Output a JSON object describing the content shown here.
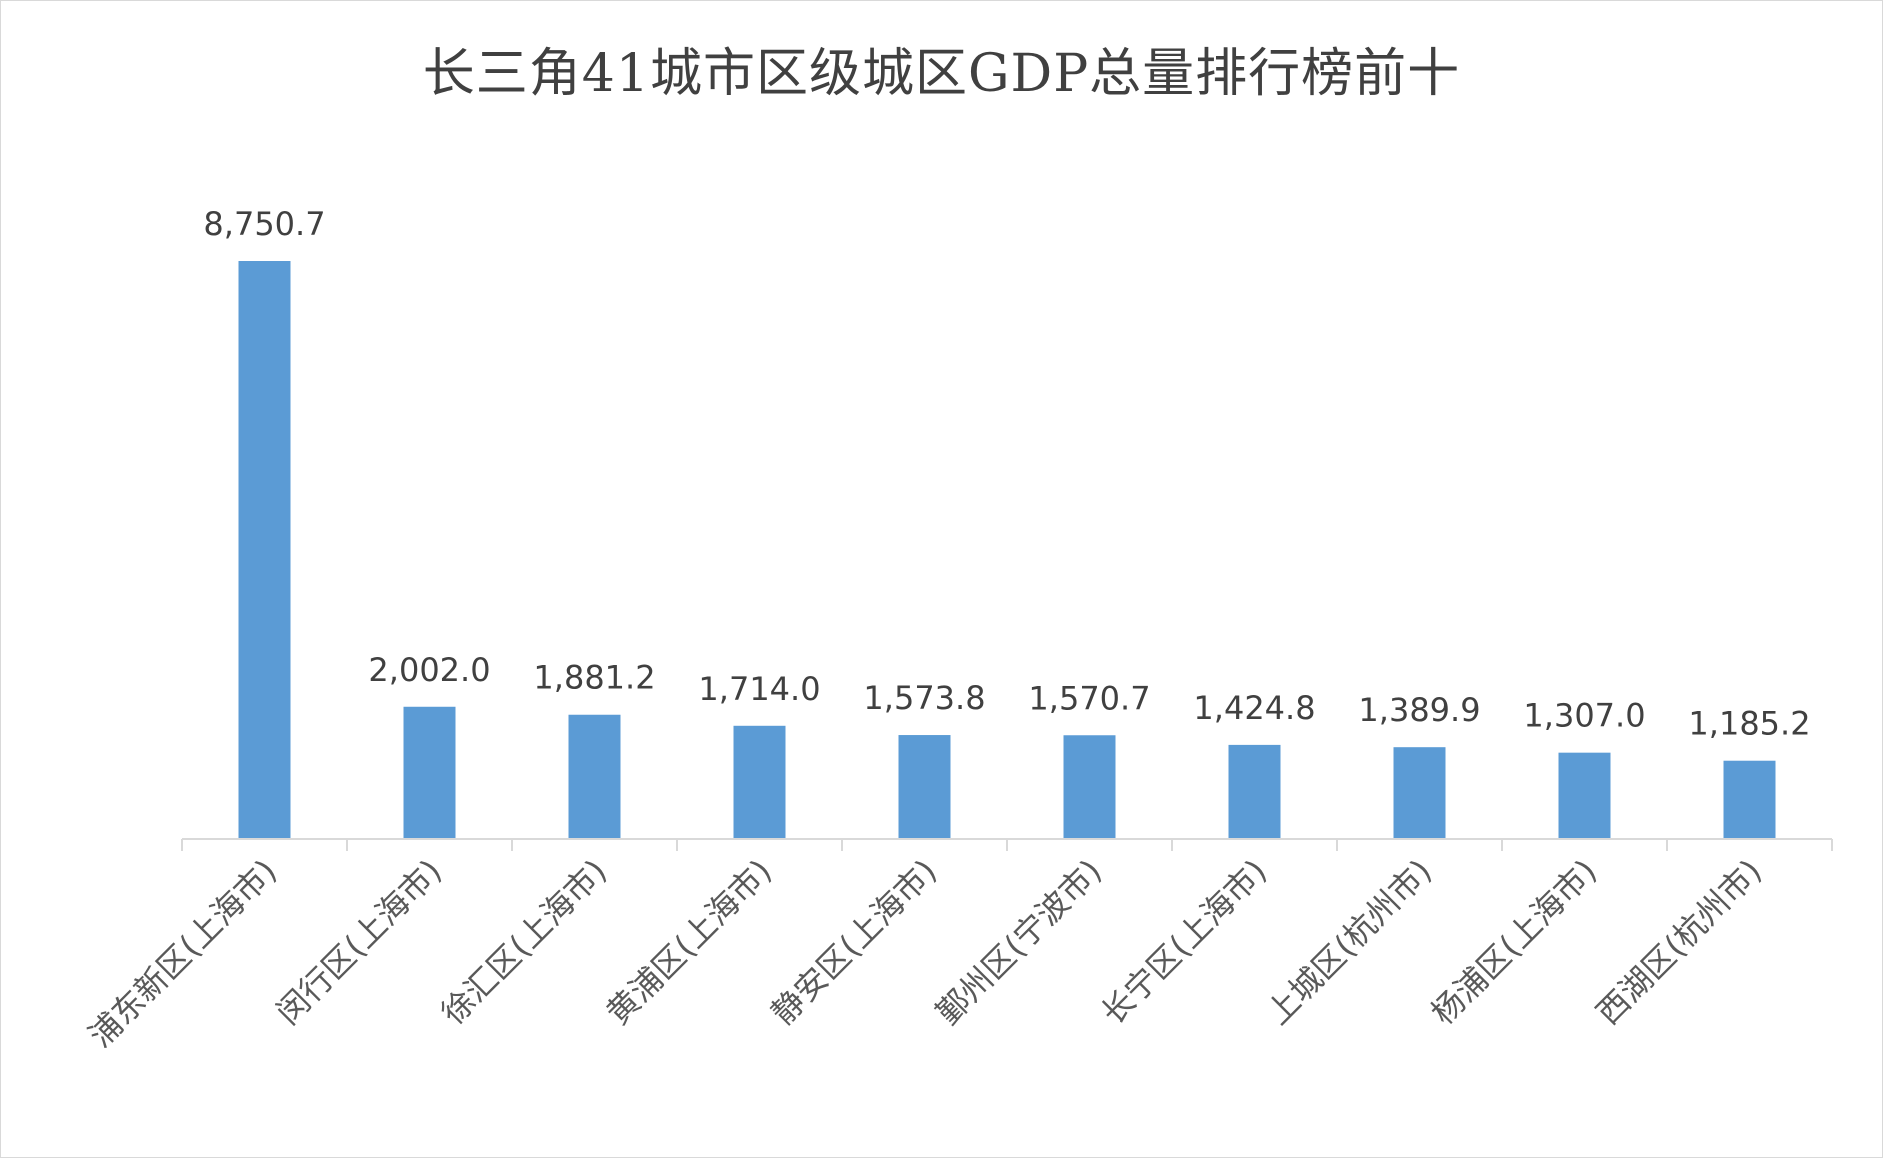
{
  "chart_data": {
    "type": "bar",
    "title": "长三角41城市区级城区GDP总量排行榜前十",
    "categories": [
      "浦东新区(上海市)",
      "闵行区(上海市)",
      "徐汇区(上海市)",
      "黄浦区(上海市)",
      "静安区(上海市)",
      "鄞州区(宁波市)",
      "长宁区(上海市)",
      "上城区(杭州市)",
      "杨浦区(上海市)",
      "西湖区(杭州市)"
    ],
    "values": [
      8750.7,
      2002.0,
      1881.2,
      1714.0,
      1573.8,
      1570.7,
      1424.8,
      1389.9,
      1307.0,
      1185.2
    ],
    "value_labels": [
      "8,750.7",
      "2,002.0",
      "1,881.2",
      "1,714.0",
      "1,573.8",
      "1,570.7",
      "1,424.8",
      "1,389.9",
      "1,307.0",
      "1,185.2"
    ],
    "xlabel": "",
    "ylabel": "",
    "ylim": [
      0,
      10000
    ],
    "grid": false,
    "legend": "none",
    "colors": {
      "bar": "#5b9bd5",
      "axis": "#d9d9d9",
      "text": "#404040"
    }
  }
}
